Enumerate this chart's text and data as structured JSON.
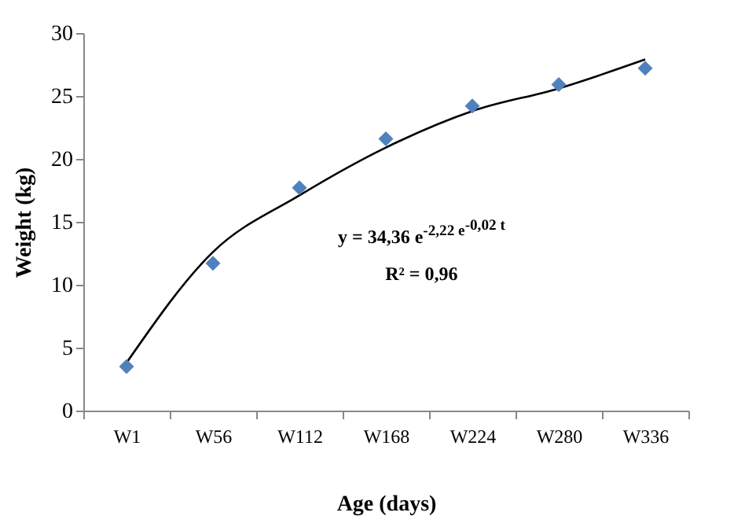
{
  "chart_data": {
    "type": "scatter",
    "xlabel": "Age (days)",
    "ylabel": "Weight (kg)",
    "categories": [
      "W1",
      "W56",
      "W112",
      "W168",
      "W224",
      "W280",
      "W336"
    ],
    "series": [
      {
        "type": "scatter",
        "color": "#4f81bd",
        "marker": "diamond",
        "values": [
          3.5,
          11.7,
          17.7,
          21.6,
          24.2,
          25.9,
          27.2
        ]
      },
      {
        "type": "line",
        "color": "#000000",
        "marker": "none",
        "line_style": "solid",
        "values": [
          3.8,
          12.6,
          17.1,
          20.9,
          23.8,
          25.6,
          27.9
        ]
      }
    ],
    "ylim": [
      0,
      30
    ],
    "yticks": [
      0,
      5,
      10,
      15,
      20,
      25,
      30
    ],
    "grid": false,
    "annotations": [
      "y = 34,36 e$^{-2,22 e}$$^{-0,02 t}$",
      "R² = 0,96"
    ]
  }
}
